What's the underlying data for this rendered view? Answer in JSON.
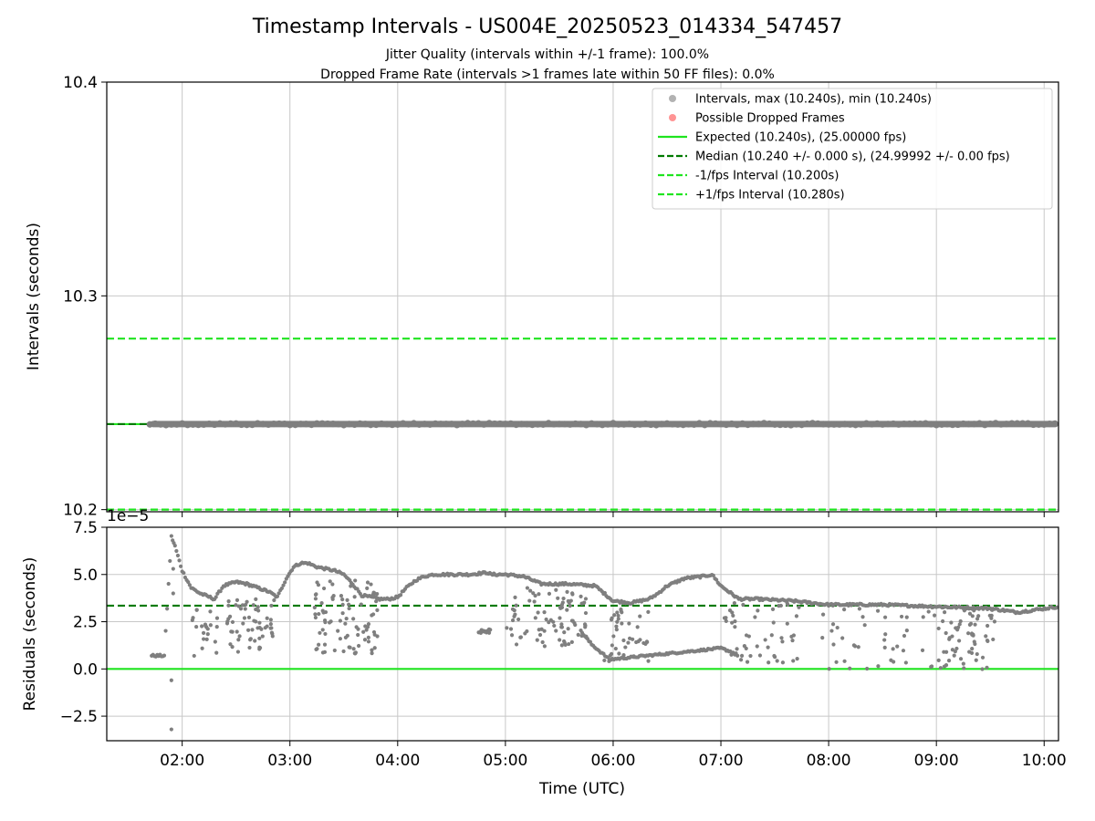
{
  "figure": {
    "title": "Timestamp Intervals - US004E_20250523_014334_547457",
    "subtitle_1": "Jitter Quality (intervals within +/-1 frame): 100.0%",
    "subtitle_2": "Dropped Frame Rate (intervals >1 frames late within 50 FF files): 0.0%"
  },
  "colors": {
    "scatter": "#7f7f7f",
    "dropped": "#ff4d4d",
    "expected": "#1fe41f",
    "median": "#007a00",
    "fps_interval": "#1fe41f",
    "grid": "#c8c8c8"
  },
  "chart_data": [
    {
      "type": "scatter",
      "ylabel": "Intervals (seconds)",
      "ylim": [
        10.199,
        10.4
      ],
      "xlim": [
        "01:18",
        "10:08"
      ],
      "yticks": [
        "10.2",
        "10.3",
        "10.4"
      ],
      "grid": true,
      "legend_position": "top-right",
      "legend": [
        {
          "label": "Intervals, max (10.240s), min (10.240s)",
          "kind": "dot",
          "color_key": "scatter"
        },
        {
          "label": "Possible Dropped Frames",
          "kind": "dot",
          "color_key": "dropped"
        },
        {
          "label": "Expected (10.240s), (25.00000 fps)",
          "kind": "solid",
          "color_key": "expected"
        },
        {
          "label": "Median (10.240 +/- 0.000 s), (24.99992 +/- 0.00 fps)",
          "kind": "dashed",
          "color_key": "median"
        },
        {
          "label": "-1/fps Interval (10.200s)",
          "kind": "dashed",
          "color_key": "fps_interval"
        },
        {
          "label": "+1/fps Interval (10.280s)",
          "kind": "dashed",
          "color_key": "fps_interval"
        }
      ],
      "series": {
        "intervals": {
          "x_start": "01:42",
          "x_end": "10:08",
          "y": 10.24
        },
        "expected": 10.24,
        "median": 10.24,
        "minus_fps": 10.2,
        "plus_fps": 10.28
      }
    },
    {
      "type": "scatter",
      "ylabel": "Residuals (seconds)",
      "xlabel": "Time (UTC)",
      "offset_label": "1e−5",
      "ylim": [
        -3.8,
        7.5
      ],
      "y_scale": 1e-05,
      "yticks": [
        "−2.5",
        "0.0",
        "2.5",
        "5.0",
        "7.5"
      ],
      "xticks": [
        "02:00",
        "03:00",
        "04:00",
        "05:00",
        "06:00",
        "07:00",
        "08:00",
        "09:00",
        "10:00"
      ],
      "xlim": [
        "01:18",
        "10:08"
      ],
      "grid": true,
      "expected_residual": 0.0,
      "median_residual": 3.35,
      "trend": [
        [
          "01:43",
          0.7
        ],
        [
          "01:50",
          0.7
        ],
        [
          "01:54",
          7.0
        ],
        [
          "01:56",
          6.5
        ],
        [
          "02:00",
          5.2
        ],
        [
          "02:05",
          4.3
        ],
        [
          "02:10",
          4.0
        ],
        [
          "02:18",
          3.7
        ],
        [
          "02:23",
          4.4
        ],
        [
          "02:30",
          4.6
        ],
        [
          "02:36",
          4.5
        ],
        [
          "02:42",
          4.3
        ],
        [
          "02:48",
          4.1
        ],
        [
          "02:53",
          3.8
        ],
        [
          "02:58",
          4.8
        ],
        [
          "03:02",
          5.4
        ],
        [
          "03:06",
          5.6
        ],
        [
          "03:10",
          5.6
        ],
        [
          "03:15",
          5.4
        ],
        [
          "03:20",
          5.3
        ],
        [
          "03:25",
          5.2
        ],
        [
          "03:30",
          5.0
        ],
        [
          "03:35",
          4.5
        ],
        [
          "03:40",
          3.9
        ],
        [
          "03:45",
          3.8
        ],
        [
          "03:50",
          3.7
        ],
        [
          "03:55",
          3.7
        ],
        [
          "04:00",
          3.8
        ],
        [
          "04:05",
          4.3
        ],
        [
          "04:10",
          4.7
        ],
        [
          "04:15",
          4.9
        ],
        [
          "04:20",
          5.0
        ],
        [
          "04:30",
          5.0
        ],
        [
          "04:40",
          5.0
        ],
        [
          "04:50",
          5.1
        ],
        [
          "04:52",
          5.0
        ],
        [
          "05:00",
          5.0
        ],
        [
          "05:10",
          4.9
        ],
        [
          "05:20",
          4.5
        ],
        [
          "05:35",
          4.5
        ],
        [
          "05:50",
          4.4
        ],
        [
          "06:00",
          3.6
        ],
        [
          "06:10",
          3.5
        ],
        [
          "06:15",
          3.6
        ],
        [
          "06:20",
          3.7
        ],
        [
          "06:25",
          4.0
        ],
        [
          "06:30",
          4.4
        ],
        [
          "06:40",
          4.8
        ],
        [
          "06:50",
          4.9
        ],
        [
          "06:55",
          5.0
        ],
        [
          "07:00",
          4.4
        ],
        [
          "07:10",
          3.7
        ],
        [
          "07:20",
          3.7
        ],
        [
          "07:40",
          3.6
        ],
        [
          "08:00",
          3.4
        ],
        [
          "08:30",
          3.4
        ],
        [
          "09:00",
          3.3
        ],
        [
          "09:30",
          3.2
        ],
        [
          "09:45",
          3.0
        ],
        [
          "10:08",
          3.3
        ]
      ],
      "low_runs": [
        [
          "05:42",
          2.0
        ],
        [
          "05:48",
          1.3
        ],
        [
          "05:53",
          0.9
        ],
        [
          "05:58",
          0.5
        ],
        [
          "07:00",
          1.1
        ],
        [
          "07:06",
          0.9
        ],
        [
          "07:10",
          0.7
        ]
      ],
      "scatter_regions": [
        {
          "x_from": "02:05",
          "x_to": "02:20",
          "y_from": 0.6,
          "y_to": 3.2,
          "count": 22
        },
        {
          "x_from": "02:25",
          "x_to": "02:52",
          "y_from": 0.9,
          "y_to": 3.8,
          "count": 60
        },
        {
          "x_from": "03:13",
          "x_to": "03:50",
          "y_from": 0.8,
          "y_to": 4.8,
          "count": 90
        },
        {
          "x_from": "04:45",
          "x_to": "04:52",
          "y_from": 1.9,
          "y_to": 2.1,
          "count": 14
        },
        {
          "x_from": "05:00",
          "x_to": "05:45",
          "y_from": 1.2,
          "y_to": 4.3,
          "count": 85
        },
        {
          "x_from": "05:55",
          "x_to": "06:20",
          "y_from": 0.4,
          "y_to": 3.4,
          "count": 40
        },
        {
          "x_from": "07:00",
          "x_to": "07:45",
          "y_from": 0.3,
          "y_to": 3.5,
          "count": 50
        },
        {
          "x_from": "07:55",
          "x_to": "08:45",
          "y_from": 0.0,
          "y_to": 3.3,
          "count": 35
        },
        {
          "x_from": "08:50",
          "x_to": "09:10",
          "y_from": 0.0,
          "y_to": 3.2,
          "count": 14
        },
        {
          "x_from": "09:05",
          "x_to": "09:33",
          "y_from": -0.1,
          "y_to": 3.3,
          "count": 55
        }
      ],
      "outliers": [
        [
          "01:54",
          -3.2
        ],
        [
          "01:54",
          -0.6
        ],
        [
          "01:55",
          4.0
        ],
        [
          "01:55",
          5.3
        ]
      ]
    }
  ]
}
